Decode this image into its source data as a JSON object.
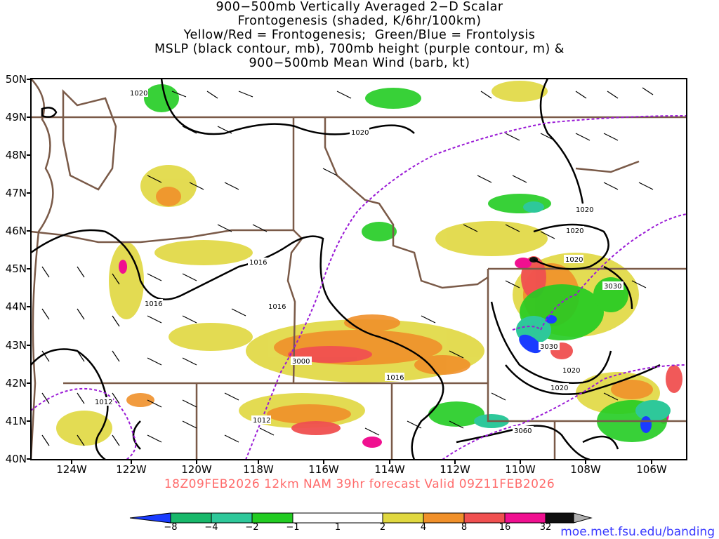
{
  "title_lines": [
    "900−500mb Vertically Averaged 2−D Scalar",
    "Frontogenesis (shaded, K/6hr/100km)",
    "Yellow/Red = Frontogenesis;  Green/Blue = Frontolysis",
    "MSLP (black contour, mb), 700mb height (purple contour, m) &",
    "900−500mb Mean Wind (barb, kt)"
  ],
  "forecast_line": "18Z09FEB2026 12km NAM 39hr forecast Valid 09Z11FEB2026",
  "credit": "moe.met.fsu.edu/banding",
  "colors": {
    "forecast_text": "#ff6b6b",
    "credit_text": "#3a3aff",
    "state_borders": "#7a5a48",
    "mslp_contour": "#000000",
    "height_contour": "#9a1ad6"
  },
  "map": {
    "lat_labels": [
      "50N",
      "49N",
      "48N",
      "47N",
      "46N",
      "45N",
      "44N",
      "43N",
      "42N",
      "41N",
      "40N"
    ],
    "lon_labels": [
      "124W",
      "122W",
      "120W",
      "118W",
      "116W",
      "114W",
      "112W",
      "110W",
      "108W",
      "106W"
    ],
    "mslp_labels": [
      "1020",
      "1020",
      "1020",
      "1020",
      "1020",
      "1016",
      "1016",
      "1016",
      "1016",
      "1012",
      "1012",
      "1020",
      "1020"
    ],
    "height_labels": [
      "3030",
      "3030",
      "3000",
      "3060"
    ]
  },
  "colorbar": {
    "labels": [
      "−8",
      "−4",
      "−2",
      "−1",
      "1",
      "2",
      "4",
      "8",
      "16",
      "32"
    ],
    "colors": [
      "#1a3cff",
      "#18b86a",
      "#2ec89a",
      "#22cc22",
      "#ffffff",
      "#e0d840",
      "#f0902a",
      "#f05050",
      "#f01090",
      "#101010",
      "#b0b0b0"
    ]
  }
}
